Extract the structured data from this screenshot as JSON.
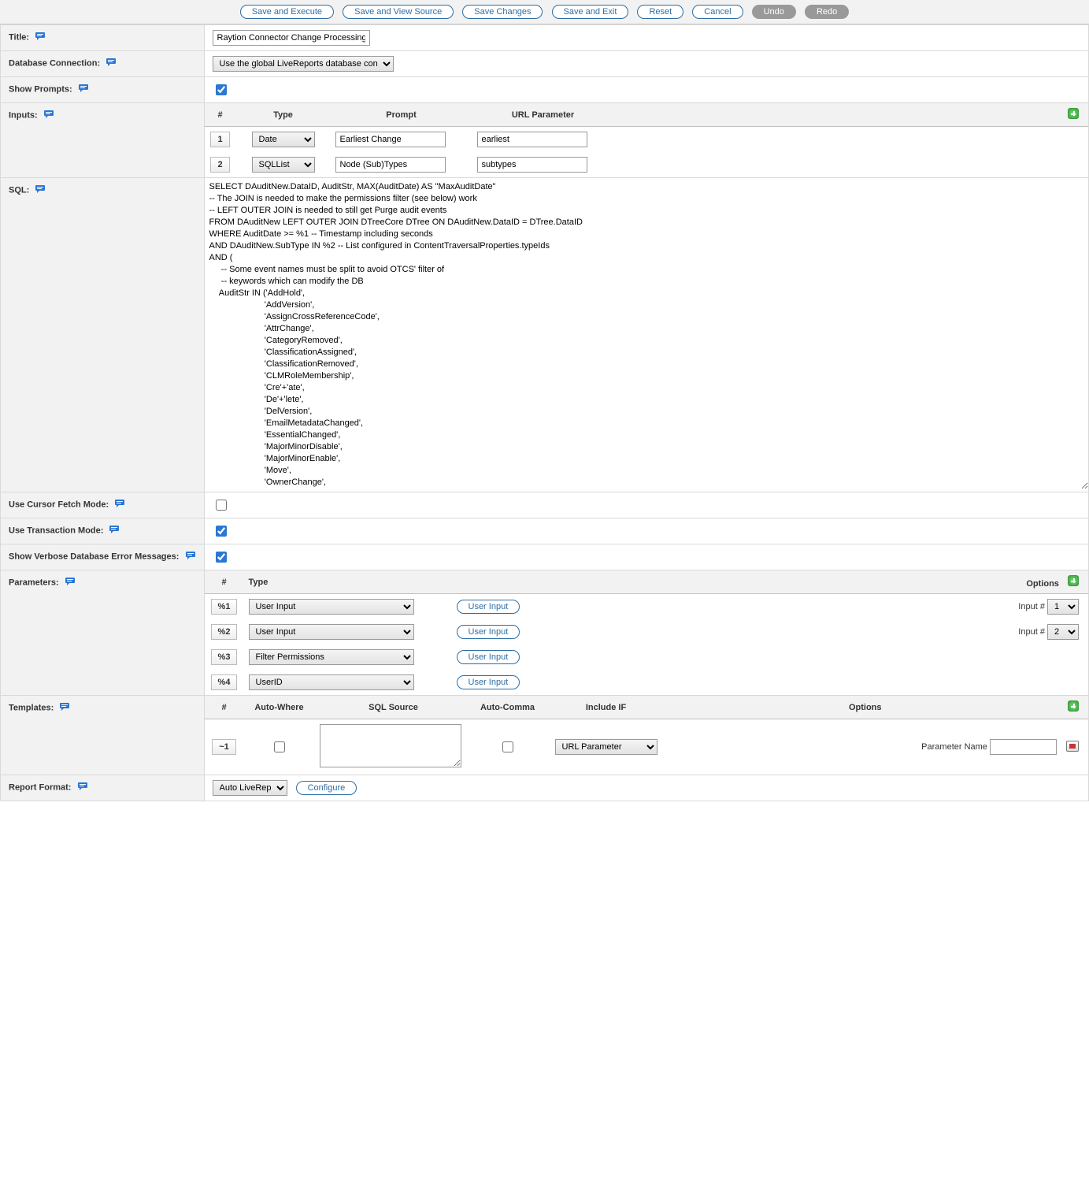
{
  "toolbar": {
    "save_execute": "Save and Execute",
    "save_view_source": "Save and View Source",
    "save_changes": "Save Changes",
    "save_exit": "Save and Exit",
    "reset": "Reset",
    "cancel": "Cancel",
    "undo": "Undo",
    "redo": "Redo"
  },
  "labels": {
    "title": "Title:",
    "db_conn": "Database Connection:",
    "show_prompts": "Show Prompts:",
    "inputs": "Inputs:",
    "sql": "SQL:",
    "cursor_fetch": "Use Cursor Fetch Mode:",
    "transaction": "Use Transaction Mode:",
    "verbose_errors": "Show Verbose Database Error Messages:",
    "parameters": "Parameters:",
    "templates": "Templates:",
    "report_format": "Report Format:"
  },
  "title_value": "Raytion Connector Change Processing LiveReport",
  "db_conn_value": "Use the global LiveReports database connection",
  "show_prompts_checked": true,
  "inputs_table": {
    "headers": {
      "num": "#",
      "type": "Type",
      "prompt": "Prompt",
      "url_param": "URL Parameter"
    },
    "rows": [
      {
        "num": "1",
        "type": "Date",
        "prompt": "Earliest Change",
        "url_param": "earliest"
      },
      {
        "num": "2",
        "type": "SQLList",
        "prompt": "Node (Sub)Types",
        "url_param": "subtypes"
      }
    ]
  },
  "sql_text": "SELECT DAuditNew.DataID, AuditStr, MAX(AuditDate) AS \"MaxAuditDate\"\n-- The JOIN is needed to make the permissions filter (see below) work\n-- LEFT OUTER JOIN is needed to still get Purge audit events\nFROM DAuditNew LEFT OUTER JOIN DTreeCore DTree ON DAuditNew.DataID = DTree.DataID\nWHERE AuditDate >= %1 -- Timestamp including seconds\nAND DAuditNew.SubType IN %2 -- List configured in ContentTraversalProperties.typeIds\nAND (\n     -- Some event names must be split to avoid OTCS' filter of\n     -- keywords which can modify the DB\n    AuditStr IN ('AddHold',\n                       'AddVersion',\n                       'AssignCrossReferenceCode',\n                       'AttrChange',\n                       'CategoryRemoved',\n                       'ClassificationAssigned',\n                       'ClassificationRemoved',\n                       'CLMRoleMembership',\n                       'Cre'+'ate',\n                       'De'+'lete',\n                       'DelVersion',\n                       'EmailMetadataChanged',\n                       'EssentialChanged',\n                       'MajorMinorDisable',\n                       'MajorMinorEnable',\n                       'Move',\n                       'OwnerChange',",
  "cursor_fetch_checked": false,
  "transaction_checked": true,
  "verbose_errors_checked": true,
  "params_table": {
    "headers": {
      "num": "#",
      "type": "Type",
      "options": "Options"
    },
    "input_num_label": "Input #",
    "user_input_btn": "User Input",
    "rows": [
      {
        "num": "%1",
        "type": "User Input",
        "has_input_num": true,
        "input_num": "1"
      },
      {
        "num": "%2",
        "type": "User Input",
        "has_input_num": true,
        "input_num": "2"
      },
      {
        "num": "%3",
        "type": "Filter Permissions",
        "has_input_num": false
      },
      {
        "num": "%4",
        "type": "UserID",
        "has_input_num": false
      }
    ]
  },
  "templates_table": {
    "headers": {
      "num": "#",
      "auto_where": "Auto-Where",
      "sql_source": "SQL Source",
      "auto_comma": "Auto-Comma",
      "include_if": "Include IF",
      "options": "Options"
    },
    "row": {
      "num": "~1",
      "auto_where_checked": false,
      "sql_source": "",
      "auto_comma_checked": false,
      "include_if": "URL Parameter",
      "param_name_label": "Parameter Name",
      "param_name_value": ""
    }
  },
  "report_format": {
    "select_value": "Auto LiveReport",
    "configure_btn": "Configure"
  }
}
